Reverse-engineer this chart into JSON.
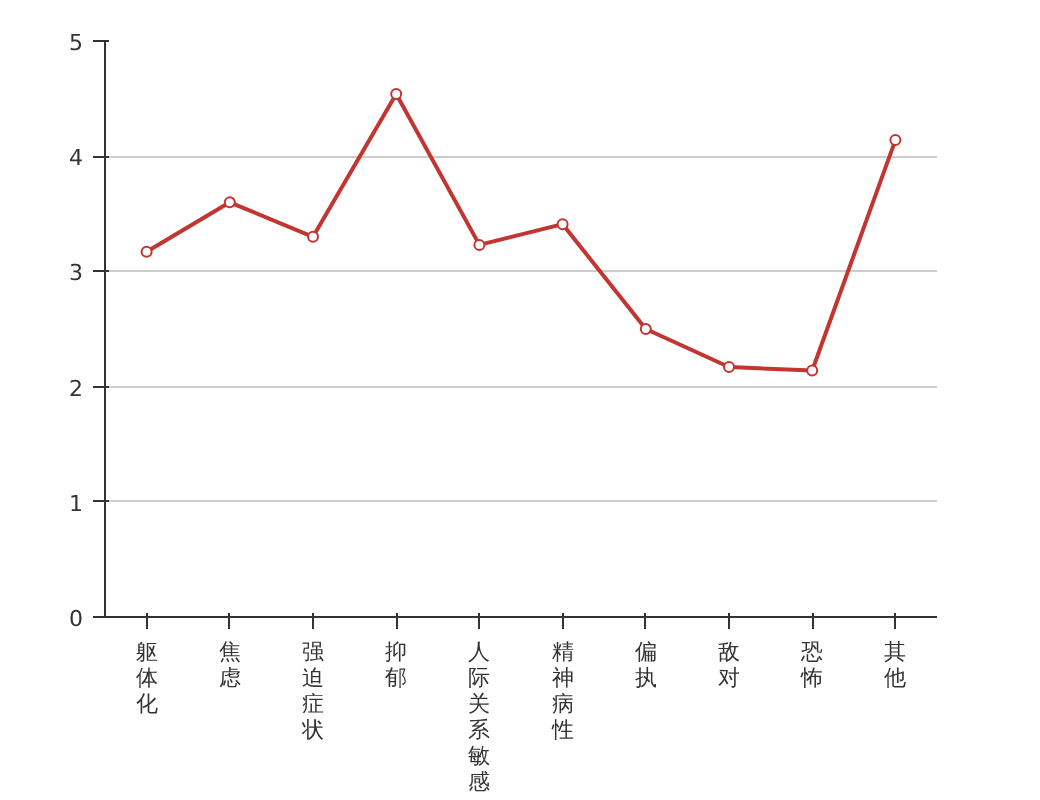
{
  "chart_data": {
    "type": "line",
    "categories": [
      "躯体化",
      "焦虑",
      "强迫症状",
      "抑郁",
      "人际关系敏感",
      "精神病性",
      "偏执",
      "敌对",
      "恐怖",
      "其他"
    ],
    "series": [
      {
        "color": "#c23531",
        "values": [
          3.17,
          3.6,
          3.3,
          4.54,
          3.23,
          3.41,
          2.5,
          2.17,
          2.14,
          4.14
        ]
      }
    ],
    "ylim": [
      0,
      5
    ],
    "yticks": [
      0,
      1,
      2,
      3,
      4,
      5
    ],
    "grid": "y",
    "marker": "circle",
    "line_style": "solid"
  }
}
